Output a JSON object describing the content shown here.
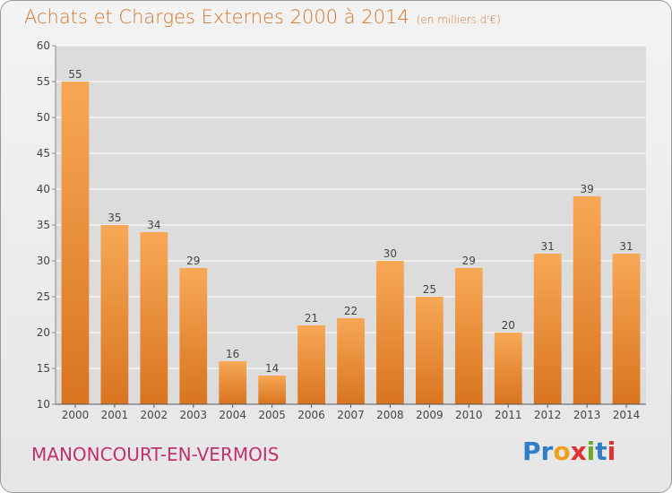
{
  "chart_data": {
    "type": "bar",
    "title": "Achats et Charges Externes 2000 à 2014",
    "subtitle": "(en milliers d'€)",
    "categories": [
      "2000",
      "2001",
      "2002",
      "2003",
      "2004",
      "2005",
      "2006",
      "2007",
      "2008",
      "2009",
      "2010",
      "2011",
      "2012",
      "2013",
      "2014"
    ],
    "values": [
      55,
      35,
      34,
      29,
      16,
      14,
      21,
      22,
      30,
      25,
      29,
      20,
      31,
      39,
      31
    ],
    "xlabel": "",
    "ylabel": "",
    "ylim": [
      10,
      60
    ],
    "yticks": [
      10,
      15,
      20,
      25,
      30,
      35,
      40,
      45,
      50,
      55,
      60
    ],
    "grid": true,
    "bar_color_top": "#f7a856",
    "bar_color_bottom": "#d9741f"
  },
  "location": "MANONCOURT-EN-VERMOIS",
  "logo": {
    "letters": [
      "P",
      "r",
      "o",
      "x",
      "i",
      "t",
      "i"
    ],
    "colors": [
      "#2f7fc6",
      "#2f7fc6",
      "#f0a020",
      "#e03030",
      "#6aaa2a",
      "#2f7fc6",
      "#e03030"
    ]
  },
  "colors": {
    "title": "#d4762a",
    "location": "#c0326e",
    "grid": "#ffffff",
    "axis": "#555555"
  }
}
